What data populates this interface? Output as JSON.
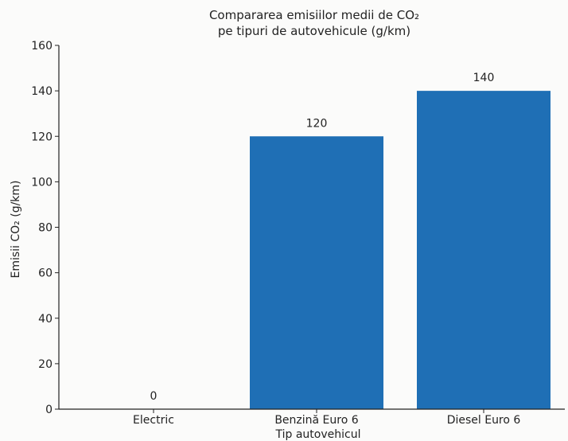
{
  "chart_data": {
    "type": "bar",
    "title_line1": "Compararea emisiilor medii de CO₂",
    "title_line2": "pe tipuri de autovehicule (g/km)",
    "xlabel": "Tip autovehicul",
    "ylabel": "Emisii CO₂ (g/km)",
    "categories": [
      "Electric",
      "Benzină Euro 6",
      "Diesel Euro 6"
    ],
    "values": [
      0,
      120,
      140
    ],
    "data_labels": [
      "0",
      "120",
      "140"
    ],
    "ylim": [
      0,
      160
    ],
    "yticks": [
      "0",
      "20",
      "40",
      "60",
      "80",
      "100",
      "120",
      "140",
      "160"
    ],
    "bar_color": "#1f6fb5",
    "grid": false,
    "legend": "none"
  }
}
